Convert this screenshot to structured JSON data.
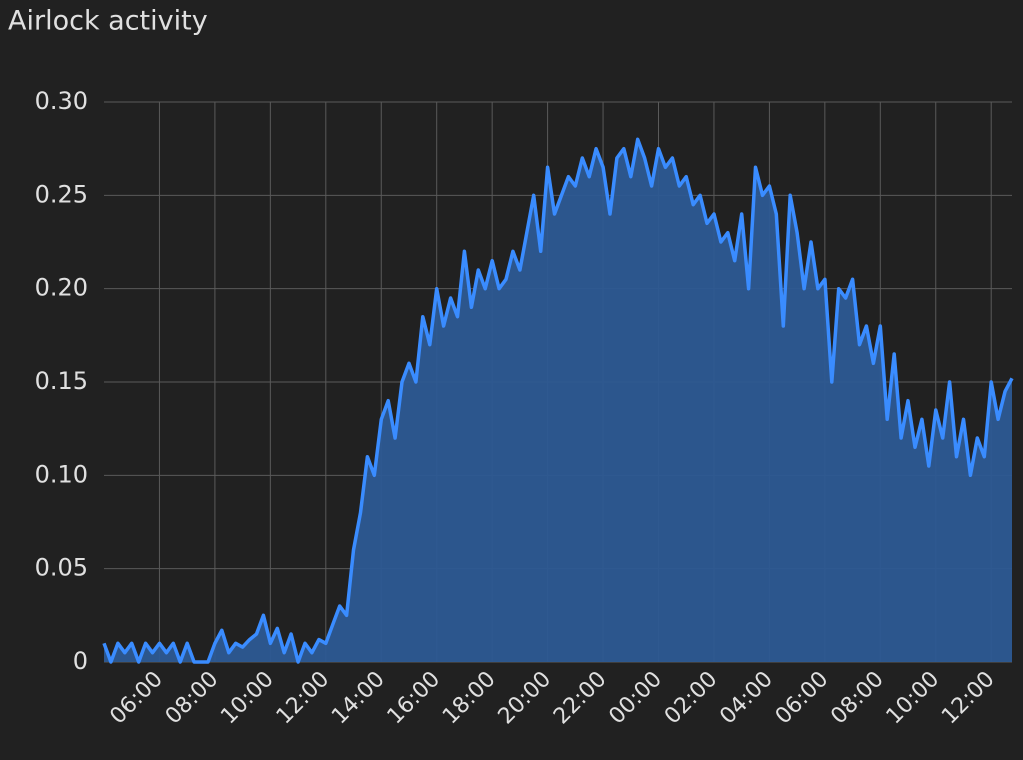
{
  "chart_data": {
    "type": "area",
    "title": "Airlock activity",
    "categories": [
      null,
      null,
      null,
      null,
      null,
      null,
      null,
      null,
      "06:00",
      null,
      null,
      null,
      null,
      null,
      null,
      null,
      "08:00",
      null,
      null,
      null,
      null,
      null,
      null,
      null,
      "10:00",
      null,
      null,
      null,
      null,
      null,
      null,
      null,
      "12:00",
      null,
      null,
      null,
      null,
      null,
      null,
      null,
      "14:00",
      null,
      null,
      null,
      null,
      null,
      null,
      null,
      "16:00",
      null,
      null,
      null,
      null,
      null,
      null,
      null,
      "18:00",
      null,
      null,
      null,
      null,
      null,
      null,
      null,
      "20:00",
      null,
      null,
      null,
      null,
      null,
      null,
      null,
      "22:00",
      null,
      null,
      null,
      null,
      null,
      null,
      null,
      "00:00",
      null,
      null,
      null,
      null,
      null,
      null,
      null,
      "02:00",
      null,
      null,
      null,
      null,
      null,
      null,
      null,
      "04:00",
      null,
      null,
      null,
      null,
      null,
      null,
      null,
      "06:00",
      null,
      null,
      null,
      null,
      null,
      null,
      null,
      "08:00",
      null,
      null,
      null,
      null,
      null,
      null,
      null,
      "10:00",
      null,
      null,
      null,
      null,
      null,
      null,
      null,
      "12:00",
      null,
      null,
      null
    ],
    "values": [
      0.01,
      0,
      0.01,
      0.005,
      0.01,
      0,
      0.01,
      0.005,
      0.01,
      0.005,
      0.01,
      0,
      0.01,
      0,
      0,
      0,
      0.01,
      0.017,
      0.005,
      0.01,
      0.008,
      0.012,
      0.015,
      0.025,
      0.01,
      0.018,
      0.005,
      0.015,
      0,
      0.01,
      0.005,
      0.012,
      0.01,
      0.02,
      0.03,
      0.025,
      0.06,
      0.08,
      0.11,
      0.1,
      0.13,
      0.14,
      0.12,
      0.15,
      0.16,
      0.15,
      0.185,
      0.17,
      0.2,
      0.18,
      0.195,
      0.185,
      0.22,
      0.19,
      0.21,
      0.2,
      0.215,
      0.2,
      0.205,
      0.22,
      0.21,
      0.23,
      0.25,
      0.22,
      0.265,
      0.24,
      0.25,
      0.26,
      0.255,
      0.27,
      0.26,
      0.275,
      0.265,
      0.24,
      0.27,
      0.275,
      0.26,
      0.28,
      0.27,
      0.255,
      0.275,
      0.265,
      0.27,
      0.255,
      0.26,
      0.245,
      0.25,
      0.235,
      0.24,
      0.225,
      0.23,
      0.215,
      0.24,
      0.2,
      0.265,
      0.25,
      0.255,
      0.24,
      0.18,
      0.25,
      0.23,
      0.2,
      0.225,
      0.2,
      0.205,
      0.15,
      0.2,
      0.195,
      0.205,
      0.17,
      0.18,
      0.16,
      0.18,
      0.13,
      0.165,
      0.12,
      0.14,
      0.115,
      0.13,
      0.105,
      0.135,
      0.12,
      0.15,
      0.11,
      0.13,
      0.1,
      0.12,
      0.11,
      0.15,
      0.13,
      0.145,
      0.152
    ],
    "color": "#3a8cff",
    "fill": "#2d5a94",
    "ylim": [
      0,
      0.3
    ],
    "yticks": [
      0,
      0.05,
      {
        "value": 0.1,
        "label": "0.10"
      },
      0.15,
      {
        "value": 0.2,
        "label": "0.20"
      },
      0.25,
      {
        "value": 0.3,
        "label": "0.30"
      }
    ],
    "grid": true
  }
}
